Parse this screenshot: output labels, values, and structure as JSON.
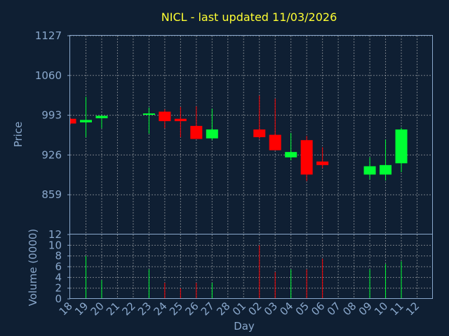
{
  "chart_data": {
    "type": "candlestick",
    "title": "NICL - last updated 11/03/2026",
    "ylabel": "Price",
    "volume_label": "Volume (0000)",
    "xlabel": "Day",
    "price_ticks": [
      "1127",
      "1060",
      "993",
      "926",
      "859"
    ],
    "price_ylim": [
      792,
      1127
    ],
    "volume_ticks": [
      "12",
      "10",
      "8",
      "6",
      "4",
      "2",
      "0"
    ],
    "volume_ylim": [
      0,
      12
    ],
    "days": [
      "18",
      "19",
      "20",
      "21",
      "22",
      "23",
      "24",
      "25",
      "26",
      "27",
      "28",
      "01",
      "02",
      "03",
      "04",
      "05",
      "06",
      "07",
      "08",
      "09",
      "10",
      "11",
      "12"
    ],
    "up_color": "#00ff33",
    "down_color": "#ff0000",
    "background": "#0f1f33",
    "grid": true,
    "candles": [
      {
        "day": "18",
        "open": 987,
        "close": 979,
        "high": 989,
        "low": 977,
        "volume": 0
      },
      {
        "day": "19",
        "open": 981,
        "close": 985,
        "high": 1024,
        "low": 956,
        "volume": 8
      },
      {
        "day": "20",
        "open": 988,
        "close": 992,
        "high": 993,
        "low": 971,
        "volume": 3.5
      },
      {
        "day": "23",
        "open": 994,
        "close": 996,
        "high": 1006,
        "low": 962,
        "volume": 5.5
      },
      {
        "day": "24",
        "open": 999,
        "close": 983,
        "high": 1003,
        "low": 971,
        "volume": 3
      },
      {
        "day": "25",
        "open": 987,
        "close": 983,
        "high": 1007,
        "low": 956,
        "volume": 2
      },
      {
        "day": "26",
        "open": 975,
        "close": 953,
        "high": 1008,
        "low": 953,
        "volume": 3
      },
      {
        "day": "27",
        "open": 954,
        "close": 969,
        "high": 1004,
        "low": 951,
        "volume": 3
      },
      {
        "day": "02",
        "open": 969,
        "close": 956,
        "high": 1026,
        "low": 953,
        "volume": 10
      },
      {
        "day": "03",
        "open": 960,
        "close": 934,
        "high": 1021,
        "low": 934,
        "volume": 5
      },
      {
        "day": "04",
        "open": 922,
        "close": 931,
        "high": 963,
        "low": 917,
        "volume": 5.5
      },
      {
        "day": "05",
        "open": 951,
        "close": 893,
        "high": 958,
        "low": 882,
        "volume": 5.5
      },
      {
        "day": "06",
        "open": 915,
        "close": 909,
        "high": 939,
        "low": 904,
        "volume": 7.5
      },
      {
        "day": "09",
        "open": 893,
        "close": 907,
        "high": 922,
        "low": 885,
        "volume": 5.5
      },
      {
        "day": "10",
        "open": 893,
        "close": 909,
        "high": 952,
        "low": 883,
        "volume": 6.5
      },
      {
        "day": "11",
        "open": 912,
        "close": 969,
        "high": 972,
        "low": 897,
        "volume": 7
      }
    ]
  }
}
